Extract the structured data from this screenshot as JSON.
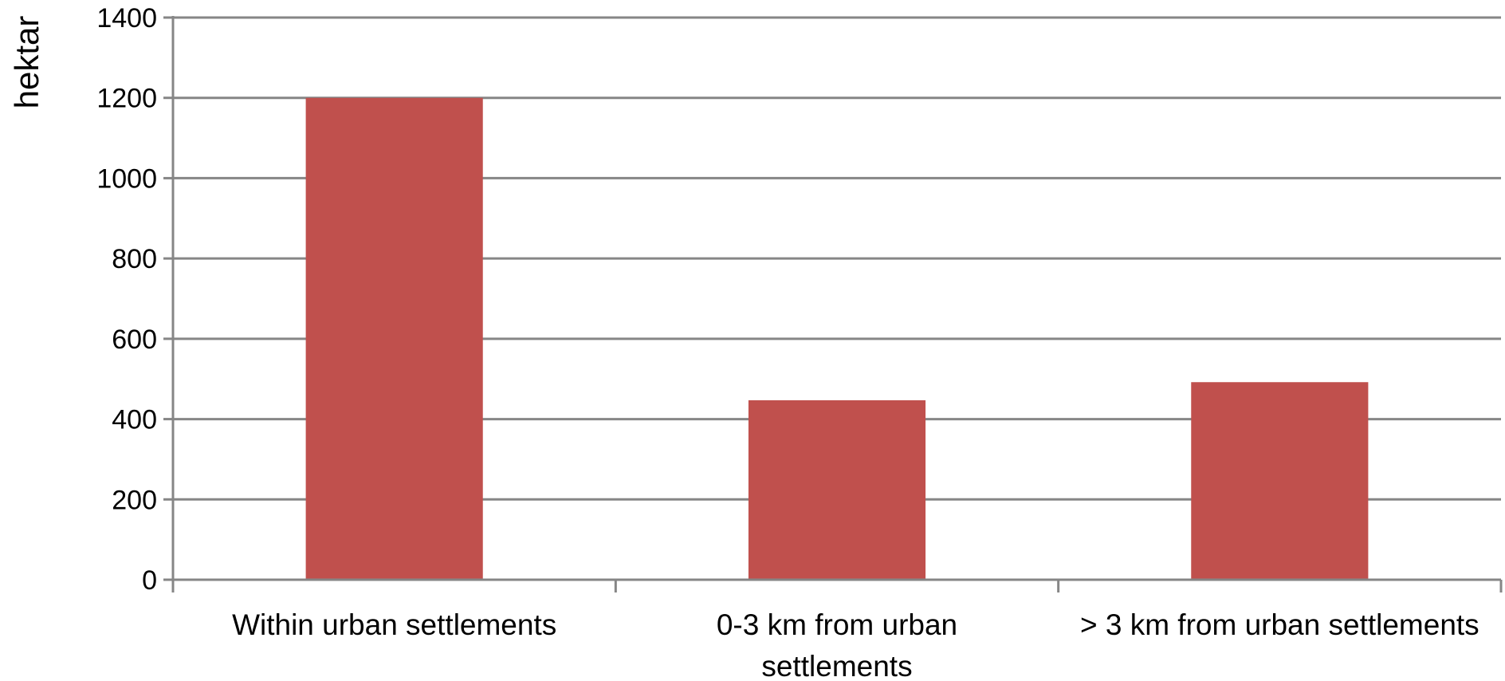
{
  "chart_data": {
    "type": "bar",
    "title": "",
    "xlabel": "",
    "ylabel": "hektar",
    "categories": [
      [
        "Within urban settlements"
      ],
      [
        "0-3 km from urban",
        "settlements"
      ],
      [
        "> 3 km from urban settlements"
      ]
    ],
    "values": [
      1200,
      447,
      492
    ],
    "ylim": [
      0,
      1400
    ],
    "yticks": [
      "0",
      "200",
      "400",
      "600",
      "800",
      "1000",
      "1200",
      "1400"
    ],
    "grid": true,
    "legend": "none",
    "bar_color": "#c0504d",
    "grid_color": "#868686"
  }
}
